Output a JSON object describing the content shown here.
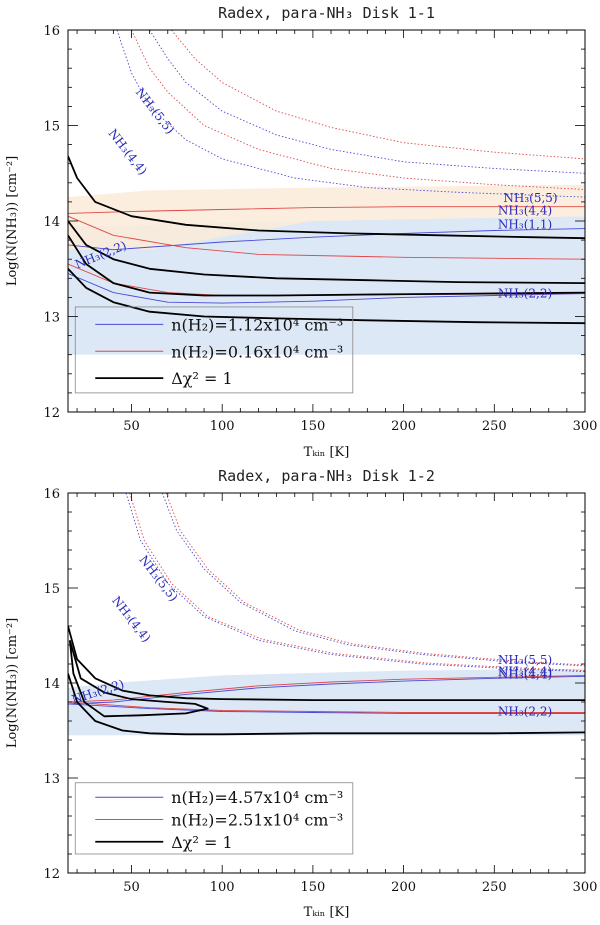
{
  "chart_data": [
    {
      "type": "line",
      "title": "Radex, para-NH₃ Disk 1-1",
      "xlabel": "Tₖᵢₙ [K]",
      "ylabel": "Log(N(NH₃)) [cm⁻²]",
      "xlim": [
        15,
        300
      ],
      "ylim": [
        12,
        16
      ],
      "xticks": [
        50,
        100,
        150,
        200,
        250,
        300
      ],
      "yticks": [
        12,
        13,
        14,
        15,
        16
      ],
      "colors": {
        "blue": "#4a4ad8",
        "red": "#e04848",
        "black": "#000000",
        "blue_fill": "#d7e4f5",
        "red_fill": "#fcebd8"
      },
      "bands": [
        {
          "color": "blue_fill",
          "x": [
            15,
            40,
            100,
            200,
            300
          ],
          "upper": [
            13.95,
            13.95,
            13.98,
            14.02,
            14.05
          ],
          "lower": [
            12.6,
            12.6,
            12.6,
            12.6,
            12.6
          ]
        },
        {
          "color": "red_fill",
          "x": [
            15,
            60,
            150,
            300
          ],
          "upper": [
            14.25,
            14.32,
            14.35,
            14.38
          ],
          "lower": [
            13.7,
            13.7,
            14.0,
            14.05
          ]
        }
      ],
      "series": [
        {
          "name": "NH3(5,5) blue",
          "color": "blue",
          "style": "dotted",
          "x": [
            60,
            70,
            80,
            100,
            130,
            160,
            200,
            250,
            300
          ],
          "y": [
            16.0,
            15.7,
            15.45,
            15.15,
            14.9,
            14.75,
            14.62,
            14.55,
            14.5
          ]
        },
        {
          "name": "NH3(5,5) red",
          "color": "red",
          "style": "dotted",
          "x": [
            72,
            85,
            100,
            130,
            160,
            200,
            250,
            300
          ],
          "y": [
            16.0,
            15.7,
            15.45,
            15.15,
            14.98,
            14.82,
            14.72,
            14.65
          ]
        },
        {
          "name": "NH3(4,4) blue",
          "color": "blue",
          "style": "dotted",
          "x": [
            42,
            50,
            60,
            80,
            100,
            140,
            180,
            230,
            300
          ],
          "y": [
            16.0,
            15.55,
            15.2,
            14.85,
            14.65,
            14.45,
            14.35,
            14.3,
            14.25
          ]
        },
        {
          "name": "NH3(4,4) red",
          "color": "red",
          "style": "dotted",
          "x": [
            50,
            60,
            70,
            90,
            120,
            160,
            200,
            250,
            300
          ],
          "y": [
            16.0,
            15.6,
            15.35,
            15.0,
            14.75,
            14.55,
            14.45,
            14.38,
            14.33
          ]
        },
        {
          "name": "NH3(5,5) red solid",
          "color": "red",
          "style": "solid",
          "x": [
            15,
            50,
            100,
            150,
            200,
            250,
            300
          ],
          "y": [
            14.08,
            14.1,
            14.12,
            14.14,
            14.15,
            14.15,
            14.15
          ]
        },
        {
          "name": "NH3(1,1) blue",
          "color": "blue",
          "style": "solid",
          "x": [
            15,
            40,
            100,
            150,
            200,
            250,
            300
          ],
          "y": [
            13.75,
            13.7,
            13.78,
            13.83,
            13.87,
            13.9,
            13.92
          ]
        },
        {
          "name": "NH3(1,1) red",
          "color": "red",
          "style": "solid",
          "x": [
            15,
            40,
            80,
            120,
            200,
            300
          ],
          "y": [
            14.05,
            13.85,
            13.72,
            13.65,
            13.62,
            13.6
          ]
        },
        {
          "name": "NH3(2,2) blue",
          "color": "blue",
          "style": "solid",
          "x": [
            15,
            40,
            70,
            100,
            150,
            200,
            250,
            300
          ],
          "y": [
            13.45,
            13.25,
            13.15,
            13.14,
            13.16,
            13.2,
            13.22,
            13.24
          ]
        },
        {
          "name": "NH3(2,2) red",
          "color": "red",
          "style": "solid",
          "x": [
            15,
            40,
            70,
            100,
            150,
            200,
            300
          ],
          "y": [
            13.55,
            13.35,
            13.25,
            13.22,
            13.22,
            13.23,
            13.24
          ]
        },
        {
          "name": "contour upper",
          "color": "black",
          "style": "solid",
          "width": 1.8,
          "x": [
            15,
            20,
            30,
            50,
            80,
            120,
            170,
            220,
            270,
            300
          ],
          "y": [
            14.68,
            14.45,
            14.2,
            14.05,
            13.96,
            13.9,
            13.87,
            13.85,
            13.83,
            13.82
          ]
        },
        {
          "name": "contour middle",
          "color": "black",
          "style": "solid",
          "width": 1.8,
          "x": [
            15,
            25,
            40,
            60,
            90,
            130,
            180,
            230,
            300
          ],
          "y": [
            14.0,
            13.75,
            13.6,
            13.5,
            13.44,
            13.4,
            13.38,
            13.36,
            13.35
          ]
        },
        {
          "name": "contour inner",
          "color": "black",
          "style": "solid",
          "width": 1.8,
          "x": [
            15,
            25,
            40,
            60,
            90,
            130,
            180,
            240,
            300
          ],
          "y": [
            13.85,
            13.55,
            13.35,
            13.25,
            13.22,
            13.22,
            13.23,
            13.24,
            13.25
          ]
        },
        {
          "name": "contour lower",
          "color": "black",
          "style": "solid",
          "width": 1.8,
          "x": [
            15,
            25,
            40,
            60,
            90,
            130,
            180,
            240,
            300
          ],
          "y": [
            13.5,
            13.3,
            13.15,
            13.05,
            13.0,
            12.98,
            12.96,
            12.94,
            12.93
          ]
        }
      ],
      "curve_labels": [
        {
          "text": "NH₃(5,5)",
          "x": 52,
          "y": 15.35,
          "angle": 52
        },
        {
          "text": "NH₃(4,4)",
          "x": 37,
          "y": 14.92,
          "angle": 52
        },
        {
          "text": "NH₃(5,5)",
          "x": 255,
          "y": 14.2,
          "angle": 0
        },
        {
          "text": "NH₃(4,4)",
          "x": 252,
          "y": 14.07,
          "angle": 0
        },
        {
          "text": "NH₃(1,1)",
          "x": 252,
          "y": 13.92,
          "angle": 0
        },
        {
          "text": "NH₃(2,2)",
          "x": 20,
          "y": 13.5,
          "angle": -22
        },
        {
          "text": "NH₃(2,2)",
          "x": 252,
          "y": 13.2,
          "angle": 0
        }
      ],
      "legend": [
        {
          "label": "n(H₂)=1.12x10⁴ cm⁻³",
          "color": "blue",
          "width": 1
        },
        {
          "label": "n(H₂)=0.16x10⁴ cm⁻³",
          "color": "red",
          "width": 1
        },
        {
          "label": "Δχ² = 1",
          "color": "black",
          "width": 1.8
        }
      ],
      "legend_box": {
        "x0": 19,
        "x1": 172,
        "y_top": 13.1,
        "y_bottom": 12.2
      }
    },
    {
      "type": "line",
      "title": "Radex, para-NH₃ Disk 1-2",
      "xlabel": "Tₖᵢₙ [K]",
      "ylabel": "Log(N(NH₃)) [cm⁻²]",
      "xlim": [
        15,
        300
      ],
      "ylim": [
        12,
        16
      ],
      "xticks": [
        50,
        100,
        150,
        200,
        250,
        300
      ],
      "yticks": [
        12,
        13,
        14,
        15,
        16
      ],
      "colors": {
        "blue": "#4a4ad8",
        "red": "#e04848",
        "black": "#000000",
        "blue_fill": "#d7e4f5",
        "red_fill": "#fcebd8"
      },
      "bands": [
        {
          "color": "blue_fill",
          "x": [
            15,
            40,
            100,
            200,
            300
          ],
          "upper": [
            13.95,
            14.0,
            14.08,
            14.13,
            14.15
          ],
          "lower": [
            13.45,
            13.45,
            13.45,
            13.45,
            13.45
          ]
        }
      ],
      "series": [
        {
          "name": "NH3(5,5) blue",
          "color": "blue",
          "style": "dotted",
          "x": [
            67,
            75,
            90,
            110,
            140,
            170,
            210,
            260,
            300
          ],
          "y": [
            16.0,
            15.6,
            15.2,
            14.85,
            14.55,
            14.4,
            14.3,
            14.22,
            14.18
          ]
        },
        {
          "name": "NH3(5,5) red",
          "color": "red",
          "style": "dotted",
          "x": [
            69,
            77,
            92,
            112,
            142,
            172,
            212,
            262,
            300
          ],
          "y": [
            16.0,
            15.6,
            15.2,
            14.85,
            14.56,
            14.41,
            14.31,
            14.23,
            14.19
          ]
        },
        {
          "name": "NH3(4,4) blue",
          "color": "blue",
          "style": "dotted",
          "x": [
            47,
            55,
            70,
            90,
            120,
            160,
            210,
            260,
            300
          ],
          "y": [
            16.0,
            15.5,
            15.05,
            14.7,
            14.45,
            14.3,
            14.2,
            14.15,
            14.12
          ]
        },
        {
          "name": "NH3(4,4) red",
          "color": "red",
          "style": "dotted",
          "x": [
            49,
            57,
            72,
            92,
            122,
            162,
            212,
            262,
            300
          ],
          "y": [
            16.0,
            15.5,
            15.05,
            14.7,
            14.46,
            14.31,
            14.21,
            14.16,
            14.13
          ]
        },
        {
          "name": "NH3(1,1) blue",
          "color": "blue",
          "style": "solid",
          "x": [
            15,
            40,
            80,
            120,
            160,
            200,
            250,
            300
          ],
          "y": [
            13.78,
            13.8,
            13.88,
            13.95,
            13.99,
            14.02,
            14.05,
            14.07
          ]
        },
        {
          "name": "NH3(1,1) red",
          "color": "red",
          "style": "solid",
          "x": [
            15,
            40,
            80,
            120,
            160,
            200,
            250,
            300
          ],
          "y": [
            13.8,
            13.82,
            13.9,
            13.97,
            14.01,
            14.04,
            14.06,
            14.08
          ]
        },
        {
          "name": "NH3(2,2) blue",
          "color": "blue",
          "style": "solid",
          "x": [
            15,
            60,
            100,
            150,
            200,
            250,
            300
          ],
          "y": [
            13.78,
            13.73,
            13.7,
            13.69,
            13.68,
            13.68,
            13.68
          ]
        },
        {
          "name": "NH3(2,2) red",
          "color": "red",
          "style": "solid",
          "x": [
            15,
            60,
            100,
            150,
            200,
            250,
            300
          ],
          "y": [
            13.8,
            13.74,
            13.71,
            13.7,
            13.69,
            13.69,
            13.69
          ]
        },
        {
          "name": "contour outer upper",
          "color": "black",
          "style": "solid",
          "width": 1.8,
          "x": [
            15,
            20,
            30,
            45,
            60,
            80,
            100,
            150,
            200,
            250,
            300
          ],
          "y": [
            14.6,
            14.25,
            14.05,
            13.92,
            13.87,
            13.84,
            13.83,
            13.82,
            13.82,
            13.82,
            13.82
          ]
        },
        {
          "name": "contour outer lower",
          "color": "black",
          "style": "solid",
          "width": 1.8,
          "x": [
            15,
            20,
            30,
            45,
            60,
            80,
            100,
            150,
            200,
            250,
            300
          ],
          "y": [
            14.1,
            13.8,
            13.6,
            13.5,
            13.47,
            13.46,
            13.46,
            13.47,
            13.47,
            13.47,
            13.48
          ]
        },
        {
          "name": "contour inner loop",
          "color": "black",
          "style": "solid",
          "width": 1.8,
          "x": [
            16,
            22,
            35,
            50,
            70,
            85,
            92,
            80,
            55,
            35,
            24,
            18,
            16
          ],
          "y": [
            14.45,
            14.05,
            13.9,
            13.83,
            13.8,
            13.78,
            13.73,
            13.68,
            13.66,
            13.65,
            13.8,
            14.1,
            14.45
          ]
        }
      ],
      "curve_labels": [
        {
          "text": "NH₃(5,5)",
          "x": 54,
          "y": 15.3,
          "angle": 52
        },
        {
          "text": "NH₃(4,4)",
          "x": 39,
          "y": 14.87,
          "angle": 52
        },
        {
          "text": "NH₃(5,5)",
          "x": 252,
          "y": 14.2,
          "angle": 0
        },
        {
          "text": "NH₃(4,4)",
          "x": 252,
          "y": 14.08,
          "angle": 0
        },
        {
          "text": "NH₃(4,4)",
          "x": 252,
          "y": 14.05,
          "angle": 0
        },
        {
          "text": "NH₃(2,2)",
          "x": 18,
          "y": 13.78,
          "angle": -18
        },
        {
          "text": "NH₃(2,2)",
          "x": 252,
          "y": 13.66,
          "angle": 0
        }
      ],
      "legend": [
        {
          "label": "n(H₂)=4.57x10⁴ cm⁻³",
          "color": "blue",
          "width": 1
        },
        {
          "label": "n(H₂)=2.51x10⁴ cm⁻³",
          "color": "red",
          "width": 1
        },
        {
          "label": "Δχ² = 1",
          "color": "black",
          "width": 1.8
        }
      ],
      "legend_box": {
        "x0": 19,
        "x1": 172,
        "y_top": 12.95,
        "y_bottom": 12.2
      }
    }
  ]
}
